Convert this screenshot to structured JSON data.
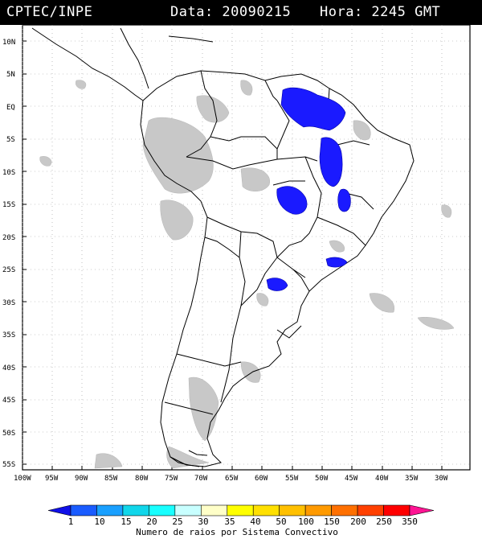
{
  "header": {
    "source": "CPTEC/INPE",
    "date_text": "Data: 20090215",
    "time_text": "Hora: 2245 GMT"
  },
  "map": {
    "lat_labels": [
      "10N",
      "5N",
      "EQ",
      "5S",
      "10S",
      "15S",
      "20S",
      "25S",
      "30S",
      "35S",
      "40S",
      "45S",
      "50S",
      "55S"
    ],
    "lon_labels": [
      "100W",
      "95W",
      "90W",
      "85W",
      "80W",
      "75W",
      "70W",
      "65W",
      "60W",
      "55W",
      "50W",
      "45W",
      "40W",
      "35W",
      "30W"
    ],
    "colors": {
      "frame": "#000000",
      "grid": "#888888",
      "cloud": "#c8c8c8",
      "convection": "#1a1aff"
    }
  },
  "colorbar": {
    "title": "Numero de raios por Sistema Convectivo",
    "labels": [
      "1",
      "10",
      "15",
      "20",
      "25",
      "30",
      "35",
      "40",
      "50",
      "100",
      "150",
      "200",
      "250",
      "350"
    ],
    "colors": [
      "#1010e8",
      "#1a5cff",
      "#1aa0ff",
      "#11d6ea",
      "#19ffff",
      "#c8ffff",
      "#ffffc8",
      "#ffff00",
      "#ffe000",
      "#ffc000",
      "#ff9a00",
      "#ff7000",
      "#ff4000",
      "#ff0000",
      "#ff1493"
    ]
  }
}
